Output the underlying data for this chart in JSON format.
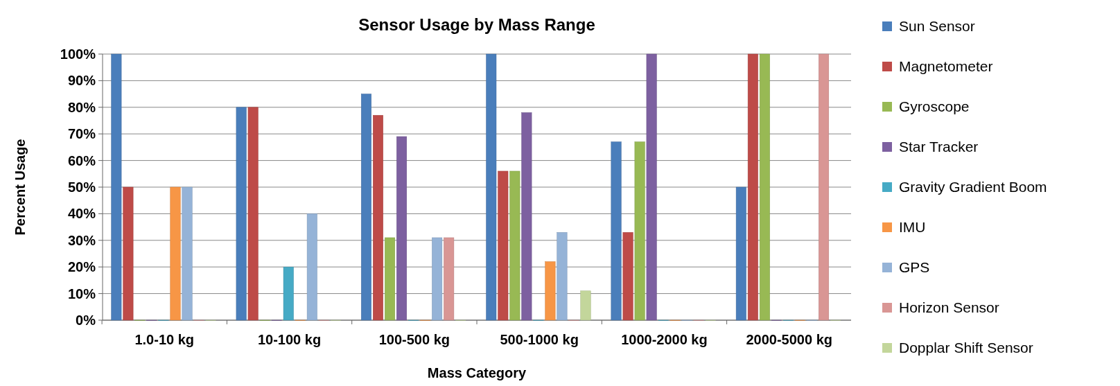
{
  "chart_data": {
    "type": "bar",
    "title": "Sensor Usage by Mass Range",
    "xlabel": "Mass Category",
    "ylabel": "Percent Usage",
    "categories": [
      "1.0-10 kg",
      "10-100 kg",
      "100-500 kg",
      "500-1000 kg",
      "1000-2000 kg",
      "2000-5000 kg"
    ],
    "series": [
      {
        "name": "Sun Sensor",
        "color": "#4a7ebb",
        "values": [
          100,
          80,
          85,
          100,
          67,
          50
        ]
      },
      {
        "name": "Magnetometer",
        "color": "#be4b48",
        "values": [
          50,
          80,
          77,
          56,
          33,
          100
        ]
      },
      {
        "name": "Gyroscope",
        "color": "#98b954",
        "values": [
          0,
          0,
          31,
          56,
          67,
          100
        ]
      },
      {
        "name": "Star Tracker",
        "color": "#7d60a0",
        "values": [
          0,
          0,
          69,
          78,
          100,
          0
        ]
      },
      {
        "name": "Gravity Gradient Boom",
        "color": "#46aac5",
        "values": [
          0,
          20,
          0,
          0,
          0,
          0
        ]
      },
      {
        "name": "IMU",
        "color": "#f79646",
        "values": [
          50,
          0,
          0,
          22,
          0,
          0
        ]
      },
      {
        "name": "GPS",
        "color": "#95b3d7",
        "values": [
          50,
          40,
          31,
          33,
          0,
          0
        ]
      },
      {
        "name": "Horizon Sensor",
        "color": "#d99694",
        "values": [
          0,
          0,
          31,
          0,
          0,
          100
        ]
      },
      {
        "name": "Dopplar Shift Sensor",
        "color": "#c3d69b",
        "values": [
          0,
          0,
          0,
          11,
          0,
          0
        ]
      }
    ],
    "ylim": [
      0,
      100
    ],
    "yticks": [
      {
        "value": 0,
        "label": "0%"
      },
      {
        "value": 10,
        "label": "10%"
      },
      {
        "value": 20,
        "label": "20%"
      },
      {
        "value": 30,
        "label": "30%"
      },
      {
        "value": 40,
        "label": "40%"
      },
      {
        "value": 50,
        "label": "50%"
      },
      {
        "value": 60,
        "label": "60%"
      },
      {
        "value": 70,
        "label": "70%"
      },
      {
        "value": 80,
        "label": "80%"
      },
      {
        "value": 90,
        "label": "90%"
      },
      {
        "value": 100,
        "label": "100%"
      }
    ],
    "grid": "y",
    "legend": "right"
  }
}
